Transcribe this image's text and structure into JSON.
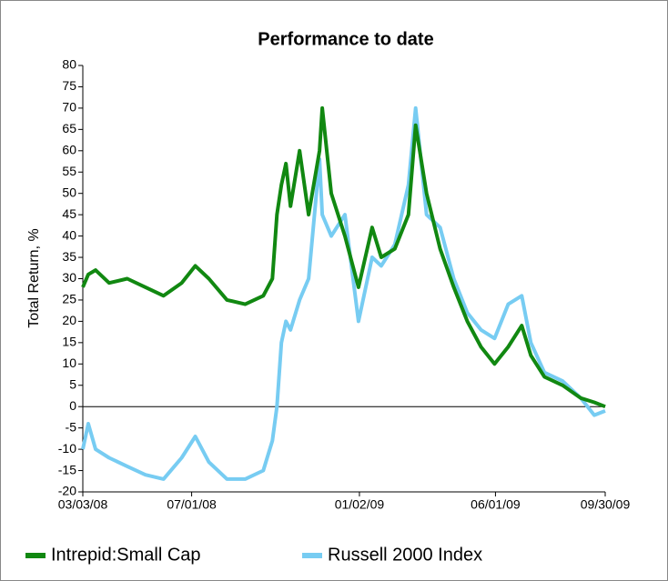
{
  "chart_data": {
    "type": "line",
    "title": "Performance to date",
    "y_label": "Total Return, %",
    "x": [
      "2008-03-03",
      "2008-03-09",
      "2008-03-17",
      "2008-04-01",
      "2008-04-21",
      "2008-05-11",
      "2008-05-31",
      "2008-06-20",
      "2008-07-05",
      "2008-07-20",
      "2008-08-09",
      "2008-08-29",
      "2008-09-18",
      "2008-09-28",
      "2008-10-03",
      "2008-10-08",
      "2008-10-13",
      "2008-10-18",
      "2008-10-28",
      "2008-11-07",
      "2008-11-19",
      "2008-11-22",
      "2008-12-02",
      "2008-12-17",
      "2009-01-01",
      "2009-01-16",
      "2009-01-26",
      "2009-02-10",
      "2009-02-25",
      "2009-03-05",
      "2009-03-17",
      "2009-04-01",
      "2009-04-16",
      "2009-05-01",
      "2009-05-16",
      "2009-05-31",
      "2009-06-15",
      "2009-06-30",
      "2009-07-10",
      "2009-07-25",
      "2009-08-14",
      "2009-09-03",
      "2009-09-18",
      "2009-09-30"
    ],
    "series": [
      {
        "name": "Intrepid:Small Cap",
        "color": "#118811",
        "values": [
          28,
          31,
          32,
          29,
          30,
          28,
          26,
          29,
          33,
          30,
          25,
          24,
          26,
          30,
          45,
          52,
          57,
          47,
          60,
          45,
          60,
          70,
          50,
          40,
          28,
          42,
          35,
          37,
          45,
          66,
          50,
          37,
          28,
          20,
          14,
          10,
          14,
          19,
          12,
          7,
          5,
          2,
          1,
          0
        ]
      },
      {
        "name": "Russell 2000 Index",
        "color": "#77ccf2",
        "values": [
          -10,
          -4,
          -10,
          -12,
          -14,
          -16,
          -17,
          -12,
          -7,
          -13,
          -17,
          -17,
          -15,
          -8,
          0,
          15,
          20,
          18,
          25,
          30,
          58,
          45,
          40,
          45,
          20,
          35,
          33,
          38,
          52,
          70,
          45,
          42,
          30,
          22,
          18,
          16,
          24,
          26,
          15,
          8,
          6,
          2,
          -2,
          -1
        ]
      }
    ],
    "xlim": [
      "2008-03-03",
      "2009-09-30"
    ],
    "xticks": [
      {
        "value": "2008-03-03",
        "label": "03/03/08"
      },
      {
        "value": "2008-07-01",
        "label": "07/01/08"
      },
      {
        "value": "2009-01-02",
        "label": "01/02/09"
      },
      {
        "value": "2009-06-01",
        "label": "06/01/09"
      },
      {
        "value": "2009-09-30",
        "label": "09/30/09"
      }
    ],
    "ylim": [
      -20,
      80
    ],
    "yticks": [
      -20,
      -15,
      -10,
      -5,
      0,
      5,
      10,
      15,
      20,
      25,
      30,
      35,
      40,
      45,
      50,
      55,
      60,
      65,
      70,
      75,
      80
    ],
    "legend": "bottom-left"
  }
}
